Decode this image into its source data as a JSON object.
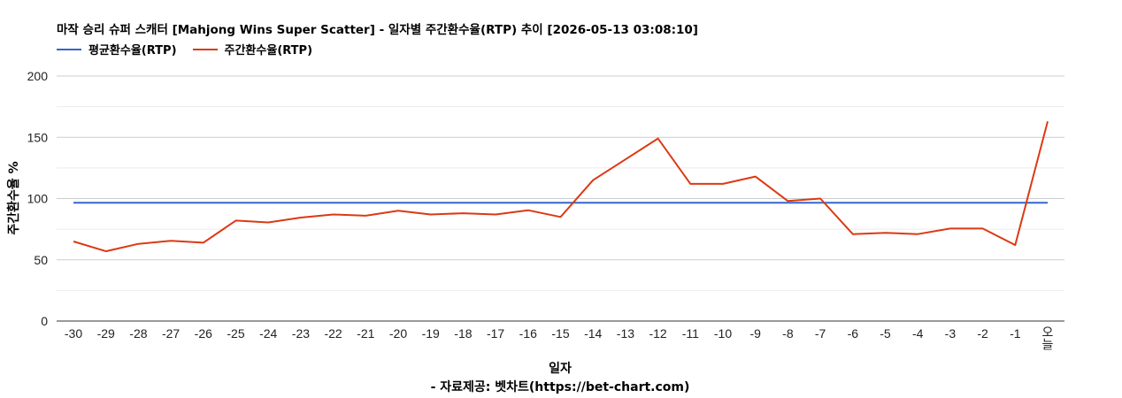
{
  "chart_data": {
    "type": "line",
    "title": "마작 승리 슈퍼 스캐터 [Mahjong Wins Super Scatter] - 일자별 주간환수율(RTP) 추이 [2026-05-13 03:08:10]",
    "xlabel": "일자",
    "ylabel": "주간환수율 %",
    "source": "- 자료제공: 벳차트(https://bet-chart.com)",
    "ylim": [
      0,
      200
    ],
    "yticks": [
      0,
      50,
      100,
      150,
      200
    ],
    "categories": [
      "-30",
      "-29",
      "-28",
      "-27",
      "-26",
      "-25",
      "-24",
      "-23",
      "-22",
      "-21",
      "-20",
      "-19",
      "-18",
      "-17",
      "-16",
      "-15",
      "-14",
      "-13",
      "-12",
      "-11",
      "-10",
      "-9",
      "-8",
      "-7",
      "-6",
      "-5",
      "-4",
      "-3",
      "-2",
      "-1",
      "오늘"
    ],
    "series": [
      {
        "name": "평균환수율(RTP)",
        "color": "#3366cc",
        "values": [
          96.5,
          96.5,
          96.5,
          96.5,
          96.5,
          96.5,
          96.5,
          96.5,
          96.5,
          96.5,
          96.5,
          96.5,
          96.5,
          96.5,
          96.5,
          96.5,
          96.5,
          96.5,
          96.5,
          96.5,
          96.5,
          96.5,
          96.5,
          96.5,
          96.5,
          96.5,
          96.5,
          96.5,
          96.5,
          96.5,
          96.5
        ]
      },
      {
        "name": "주간환수율(RTP)",
        "color": "#dc3912",
        "values": [
          65,
          57,
          63,
          65.5,
          64,
          82,
          80.5,
          84.5,
          87,
          86,
          90,
          87,
          88,
          87,
          90.5,
          85,
          115,
          132,
          149,
          112,
          112,
          118,
          98,
          100,
          71,
          72,
          71,
          75.5,
          75.5,
          62,
          163
        ]
      }
    ],
    "grid": true,
    "legend": "top-left"
  }
}
